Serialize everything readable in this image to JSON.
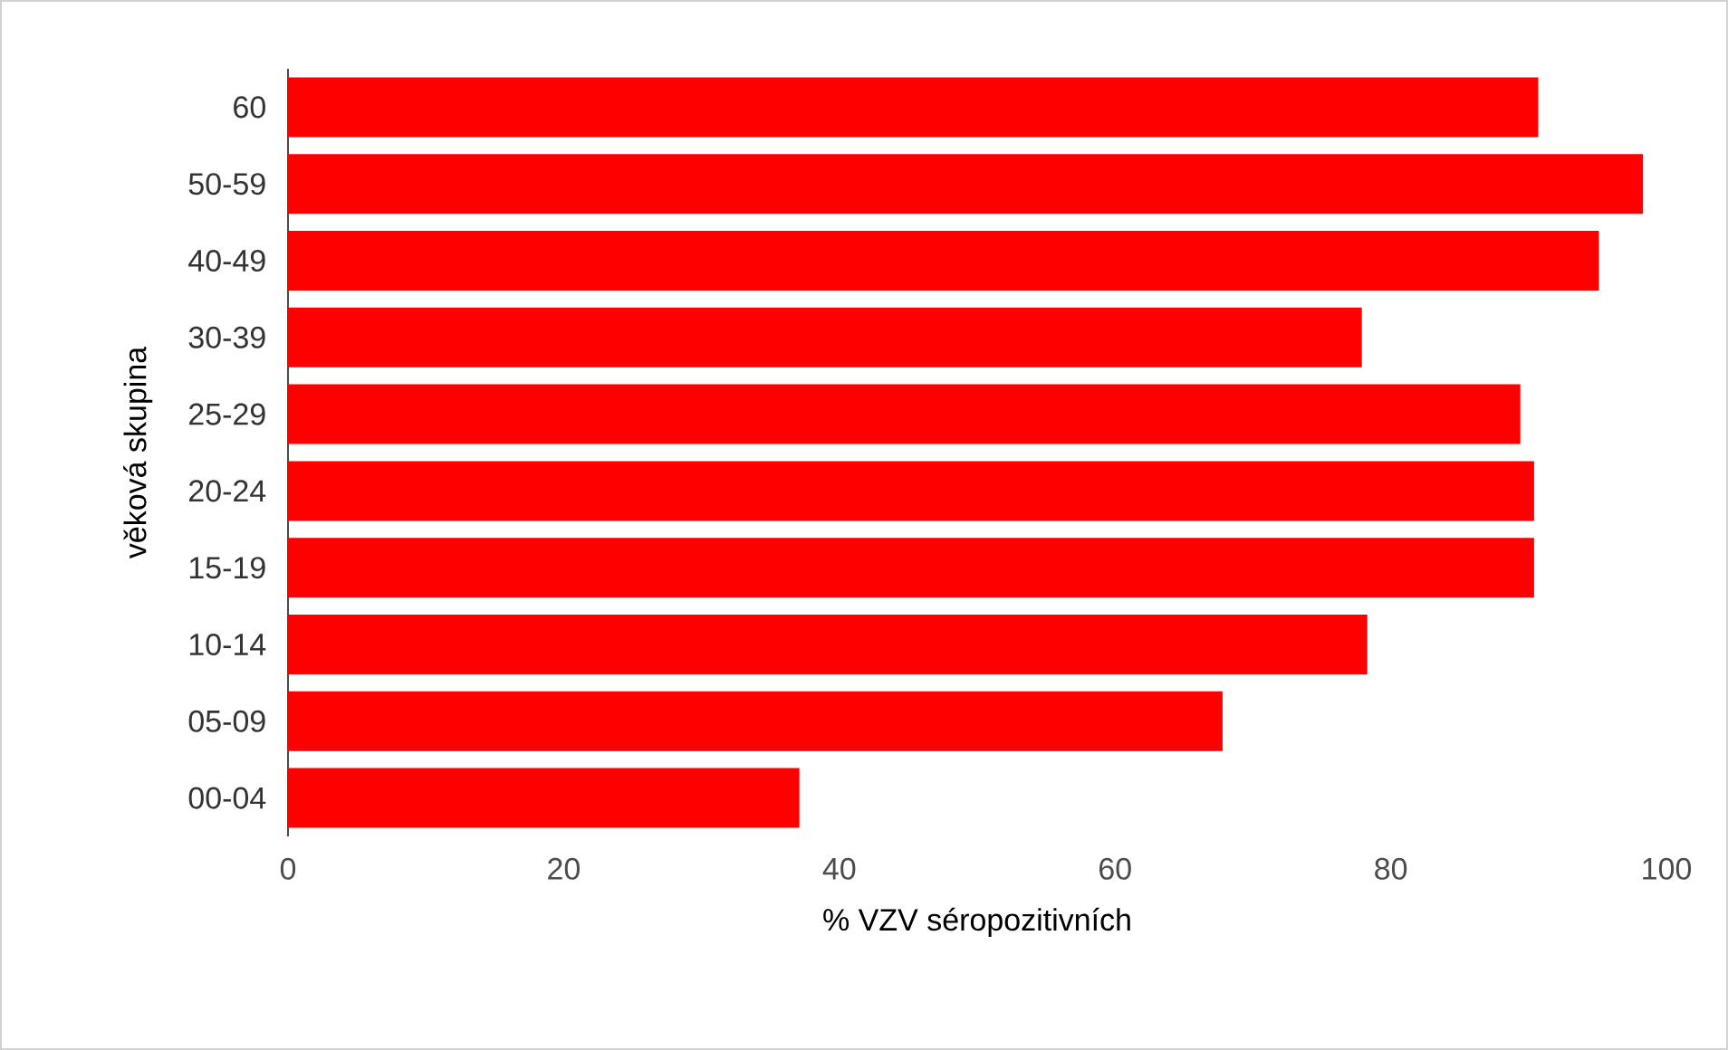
{
  "chart_data": {
    "type": "bar",
    "orientation": "horizontal",
    "xlabel": "% VZV séropozitivních",
    "ylabel": "věková skupina",
    "categories": [
      "60",
      "50-59",
      "40-49",
      "30-39",
      "25-29",
      "20-24",
      "15-19",
      "10-14",
      "05-09",
      "00-04"
    ],
    "values": [
      90.7,
      98.3,
      95.1,
      77.9,
      89.4,
      90.4,
      90.4,
      78.3,
      67.8,
      37.1
    ],
    "color": "#ff0000",
    "xlim": [
      0,
      100
    ],
    "xticks": [
      0,
      20,
      40,
      60,
      80,
      100
    ],
    "grid": false
  }
}
